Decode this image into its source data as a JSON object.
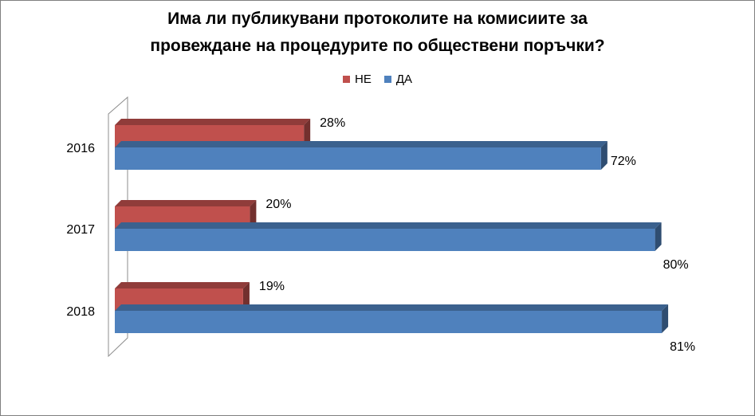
{
  "chart_data": {
    "type": "bar",
    "orientation": "horizontal",
    "title_lines": [
      "Има ли публикувани протоколите на комисиите за",
      "провеждане на процедурите по обществени поръчки?"
    ],
    "categories": [
      "2016",
      "2017",
      "2018"
    ],
    "series": [
      {
        "name": "НЕ",
        "values": [
          28,
          20,
          19
        ],
        "labels": [
          "28%",
          "20%",
          "19%"
        ],
        "color": "#c0504d"
      },
      {
        "name": "ДА",
        "values": [
          72,
          80,
          81
        ],
        "labels": [
          "72%",
          "80%",
          "81%"
        ],
        "color": "#4f81bd"
      }
    ],
    "legend_order": [
      "НЕ",
      "ДА"
    ],
    "legend_position": "top",
    "xlim": [
      0,
      100
    ],
    "grid": false,
    "style": "3d"
  }
}
